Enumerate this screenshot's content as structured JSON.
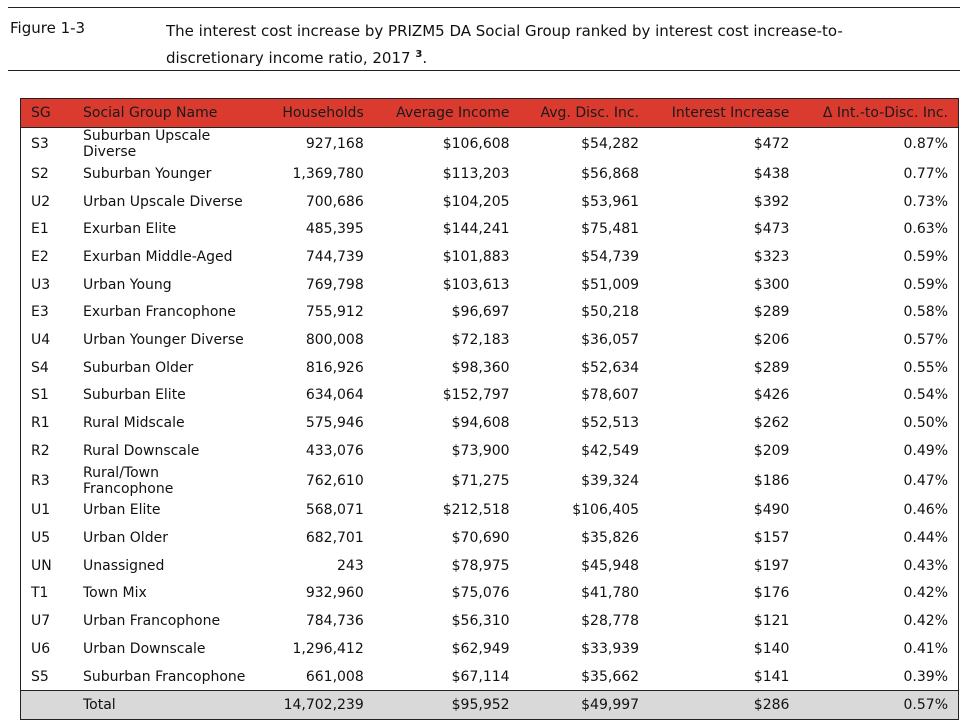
{
  "caption": {
    "label": "Figure 1-3",
    "text": "The interest cost increase by PRIZM5 DA Social Group ranked by interest cost increase-to-discretionary income ratio, 2017",
    "footnote": "3",
    "end": "."
  },
  "colors": {
    "header": "#db3a2f",
    "total_row": "#d9d9d9"
  },
  "table": {
    "headers": [
      "SG",
      "Social Group Name",
      "Households",
      "Average Income",
      "Avg. Disc. Inc.",
      "Interest Increase",
      "Δ Int.-to-Disc. Inc."
    ],
    "rows": [
      [
        "S3",
        "Suburban Upscale Diverse",
        "927,168",
        "$106,608",
        "$54,282",
        "$472",
        "0.87%"
      ],
      [
        "S2",
        "Suburban Younger",
        "1,369,780",
        "$113,203",
        "$56,868",
        "$438",
        "0.77%"
      ],
      [
        "U2",
        "Urban Upscale Diverse",
        "700,686",
        "$104,205",
        "$53,961",
        "$392",
        "0.73%"
      ],
      [
        "E1",
        "Exurban Elite",
        "485,395",
        "$144,241",
        "$75,481",
        "$473",
        "0.63%"
      ],
      [
        "E2",
        "Exurban Middle-Aged",
        "744,739",
        "$101,883",
        "$54,739",
        "$323",
        "0.59%"
      ],
      [
        "U3",
        "Urban Young",
        "769,798",
        "$103,613",
        "$51,009",
        "$300",
        "0.59%"
      ],
      [
        "E3",
        "Exurban Francophone",
        "755,912",
        "$96,697",
        "$50,218",
        "$289",
        "0.58%"
      ],
      [
        "U4",
        "Urban Younger Diverse",
        "800,008",
        "$72,183",
        "$36,057",
        "$206",
        "0.57%"
      ],
      [
        "S4",
        "Suburban Older",
        "816,926",
        "$98,360",
        "$52,634",
        "$289",
        "0.55%"
      ],
      [
        "S1",
        "Suburban Elite",
        "634,064",
        "$152,797",
        "$78,607",
        "$426",
        "0.54%"
      ],
      [
        "R1",
        "Rural Midscale",
        "575,946",
        "$94,608",
        "$52,513",
        "$262",
        "0.50%"
      ],
      [
        "R2",
        "Rural Downscale",
        "433,076",
        "$73,900",
        "$42,549",
        "$209",
        "0.49%"
      ],
      [
        "R3",
        "Rural/Town Francophone",
        "762,610",
        "$71,275",
        "$39,324",
        "$186",
        "0.47%"
      ],
      [
        "U1",
        "Urban Elite",
        "568,071",
        "$212,518",
        "$106,405",
        "$490",
        "0.46%"
      ],
      [
        "U5",
        "Urban Older",
        "682,701",
        "$70,690",
        "$35,826",
        "$157",
        "0.44%"
      ],
      [
        "UN",
        "Unassigned",
        "243",
        "$78,975",
        "$45,948",
        "$197",
        "0.43%"
      ],
      [
        "T1",
        "Town Mix",
        "932,960",
        "$75,076",
        "$41,780",
        "$176",
        "0.42%"
      ],
      [
        "U7",
        "Urban Francophone",
        "784,736",
        "$56,310",
        "$28,778",
        "$121",
        "0.42%"
      ],
      [
        "U6",
        "Urban Downscale",
        "1,296,412",
        "$62,949",
        "$33,939",
        "$140",
        "0.41%"
      ],
      [
        "S5",
        "Suburban Francophone",
        "661,008",
        "$67,114",
        "$35,662",
        "$141",
        "0.39%"
      ]
    ],
    "total": [
      "",
      "Total",
      "14,702,239",
      "$95,952",
      "$49,997",
      "$286",
      "0.57%"
    ]
  }
}
